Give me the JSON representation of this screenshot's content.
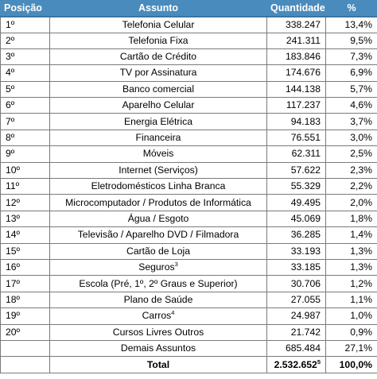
{
  "headers": {
    "position": "Posição",
    "subject": "Assunto",
    "quantity": "Quantidade",
    "percent": "%"
  },
  "rows": [
    {
      "pos": "1º",
      "subject": "Telefonia Celular",
      "qty": "338.247",
      "pct": "13,4%"
    },
    {
      "pos": "2º",
      "subject": "Telefonia Fixa",
      "qty": "241.311",
      "pct": "9,5%"
    },
    {
      "pos": "3º",
      "subject": "Cartão de Crédito",
      "qty": "183.846",
      "pct": "7,3%"
    },
    {
      "pos": "4º",
      "subject": "TV por Assinatura",
      "qty": "174.676",
      "pct": "6,9%"
    },
    {
      "pos": "5º",
      "subject": "Banco comercial",
      "qty": "144.138",
      "pct": "5,7%"
    },
    {
      "pos": "6º",
      "subject": "Aparelho Celular",
      "qty": "117.237",
      "pct": "4,6%"
    },
    {
      "pos": "7º",
      "subject": "Energia Elétrica",
      "qty": "94.183",
      "pct": "3,7%"
    },
    {
      "pos": "8º",
      "subject": "Financeira",
      "qty": "76.551",
      "pct": "3,0%"
    },
    {
      "pos": "9º",
      "subject": "Móveis",
      "qty": "62.311",
      "pct": "2,5%"
    },
    {
      "pos": "10º",
      "subject": "Internet (Serviços)",
      "qty": "57.622",
      "pct": "2,3%"
    },
    {
      "pos": "11º",
      "subject": "Eletrodomésticos Linha Branca",
      "qty": "55.329",
      "pct": "2,2%"
    },
    {
      "pos": "12º",
      "subject": "Microcomputador / Produtos de Informática",
      "qty": "49.495",
      "pct": "2,0%"
    },
    {
      "pos": "13º",
      "subject": "Água / Esgoto",
      "qty": "45.069",
      "pct": "1,8%"
    },
    {
      "pos": "14º",
      "subject": "Televisão / Aparelho DVD / Filmadora",
      "qty": "36.285",
      "pct": "1,4%"
    },
    {
      "pos": "15º",
      "subject": "Cartão de Loja",
      "qty": "33.193",
      "pct": "1,3%"
    },
    {
      "pos": "16º",
      "subject": "Seguros",
      "subject_note": "3",
      "qty": "33.185",
      "pct": "1,3%"
    },
    {
      "pos": "17º",
      "subject": "Escola (Pré, 1º, 2º Graus e Superior)",
      "qty": "30.706",
      "pct": "1,2%"
    },
    {
      "pos": "18º",
      "subject": "Plano de Saúde",
      "qty": "27.055",
      "pct": "1,1%"
    },
    {
      "pos": "19º",
      "subject": "Carros",
      "subject_note": "4",
      "qty": "24.987",
      "pct": "1,0%"
    },
    {
      "pos": "20º",
      "subject": "Cursos Livres Outros",
      "qty": "21.742",
      "pct": "0,9%"
    },
    {
      "pos": "",
      "subject": "Demais Assuntos",
      "qty": "685.484",
      "pct": "27,1%"
    }
  ],
  "total": {
    "label": "Total",
    "qty": "2.532.652",
    "qty_note": "5",
    "pct": "100,0%"
  },
  "colors": {
    "header_background": "#4a8bbd",
    "header_text": "#ffffff",
    "grid": "#7a7a7a"
  }
}
